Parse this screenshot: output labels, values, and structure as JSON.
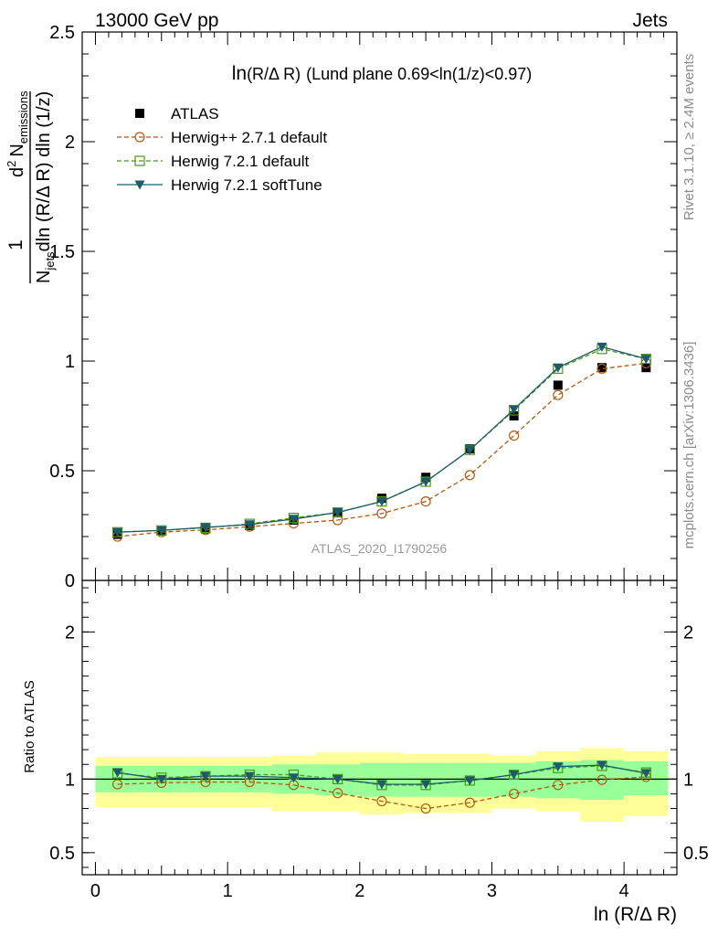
{
  "header": {
    "left": "13000 GeV pp",
    "right": "Jets"
  },
  "side_labels": {
    "rivet": "Rivet 3.1.10, ≥ 2.4M events",
    "mcplots": "mcplots.cern.ch [arXiv:1306.3436]"
  },
  "watermark": "ATLAS_2020_I1790256",
  "plot_title": {
    "main": "ln",
    "sub": "(R/Δ R)",
    "tail": "(Lund plane 0.69<ln(1/z)<0.97)"
  },
  "main_ylabel": {
    "one": "1",
    "d2": "d",
    "sup2": "2",
    "n": "N",
    "emissions": "emissions",
    "njets_n": "N",
    "jets": "jets",
    "den_tail": "dln (R/Δ R) dln (1/z)"
  },
  "ratio_ylabel": "Ratio to ATLAS",
  "xlabel": "ln (R/Δ R)",
  "legend": [
    {
      "key": "atlas",
      "label": "ATLAS",
      "color": "#000000",
      "marker": "filled-square"
    },
    {
      "key": "herwigpp",
      "label": "Herwig++ 2.7.1 default",
      "color": "#b05a10",
      "marker": "open-circle"
    },
    {
      "key": "h721",
      "label": "Herwig 7.2.1 default",
      "color": "#4b9a18",
      "marker": "open-square"
    },
    {
      "key": "soft",
      "label": "Herwig 7.2.1 softTune",
      "color": "#1f5a6b",
      "marker": "filled-triangle-down"
    }
  ],
  "chart_data": [
    {
      "type": "scatter",
      "panel": "main",
      "xlim": [
        -0.1,
        4.4
      ],
      "ylim": [
        0,
        2.5
      ],
      "yticks": [
        0,
        0.5,
        1,
        1.5,
        2,
        2.5
      ],
      "ytick_labels": [
        "0",
        "0.5",
        "1",
        "1.5",
        "2",
        "2.5"
      ],
      "x": [
        0.167,
        0.5,
        0.833,
        1.167,
        1.5,
        1.833,
        2.167,
        2.5,
        2.833,
        3.167,
        3.5,
        3.833,
        4.167
      ],
      "series": [
        {
          "name": "ATLAS",
          "values": [
            0.21,
            0.225,
            0.235,
            0.25,
            0.275,
            0.31,
            0.375,
            0.47,
            0.6,
            0.75,
            0.89,
            0.97,
            0.97
          ]
        },
        {
          "name": "Herwig++ 2.7.1 default",
          "values": [
            0.2,
            0.22,
            0.23,
            0.245,
            0.26,
            0.275,
            0.305,
            0.36,
            0.48,
            0.66,
            0.845,
            0.965,
            0.99
          ]
        },
        {
          "name": "Herwig 7.2.1 default",
          "values": [
            0.22,
            0.228,
            0.24,
            0.258,
            0.285,
            0.31,
            0.36,
            0.45,
            0.595,
            0.775,
            0.965,
            1.055,
            1.01
          ]
        },
        {
          "name": "Herwig 7.2.1 softTune",
          "values": [
            0.22,
            0.228,
            0.242,
            0.255,
            0.28,
            0.31,
            0.36,
            0.45,
            0.595,
            0.78,
            0.97,
            1.065,
            1.01
          ]
        }
      ]
    },
    {
      "type": "line",
      "panel": "ratio",
      "ylabel": "Ratio to ATLAS",
      "xlabel": "ln (R/Δ R)",
      "xlim": [
        -0.1,
        4.4
      ],
      "ylim": [
        0.35,
        2.35
      ],
      "yticks": [
        0.5,
        1,
        2
      ],
      "ytick_labels": [
        "0.5",
        "1",
        "2"
      ],
      "xticks": [
        0,
        1,
        2,
        3,
        4
      ],
      "xtick_labels": [
        "0",
        "1",
        "2",
        "3",
        "4"
      ],
      "bins": [
        [
          0,
          0.333
        ],
        [
          0.333,
          0.667
        ],
        [
          0.667,
          1.0
        ],
        [
          1.0,
          1.333
        ],
        [
          1.333,
          1.667
        ],
        [
          1.667,
          2.0
        ],
        [
          2.0,
          2.333
        ],
        [
          2.333,
          2.667
        ],
        [
          2.667,
          3.0
        ],
        [
          3.0,
          3.333
        ],
        [
          3.333,
          3.667
        ],
        [
          3.667,
          4.0
        ],
        [
          4.0,
          4.333
        ]
      ],
      "band_inner": [
        [
          0.91,
          1.09
        ],
        [
          0.91,
          1.09
        ],
        [
          0.91,
          1.09
        ],
        [
          0.91,
          1.09
        ],
        [
          0.9,
          1.1
        ],
        [
          0.89,
          1.1
        ],
        [
          0.88,
          1.11
        ],
        [
          0.88,
          1.11
        ],
        [
          0.88,
          1.11
        ],
        [
          0.88,
          1.11
        ],
        [
          0.87,
          1.12
        ],
        [
          0.86,
          1.13
        ],
        [
          0.89,
          1.12
        ]
      ],
      "band_outer": [
        [
          0.81,
          1.15
        ],
        [
          0.81,
          1.15
        ],
        [
          0.81,
          1.15
        ],
        [
          0.81,
          1.15
        ],
        [
          0.78,
          1.16
        ],
        [
          0.78,
          1.18
        ],
        [
          0.76,
          1.18
        ],
        [
          0.77,
          1.17
        ],
        [
          0.77,
          1.17
        ],
        [
          0.8,
          1.16
        ],
        [
          0.78,
          1.19
        ],
        [
          0.71,
          1.21
        ],
        [
          0.75,
          1.19
        ]
      ],
      "x": [
        0.167,
        0.5,
        0.833,
        1.167,
        1.5,
        1.833,
        2.167,
        2.5,
        2.833,
        3.167,
        3.5,
        3.833,
        4.167
      ],
      "series": [
        {
          "name": "Herwig++ 2.7.1 default",
          "values": [
            0.965,
            0.975,
            0.98,
            0.98,
            0.96,
            0.905,
            0.85,
            0.8,
            0.84,
            0.9,
            0.96,
            0.995,
            1.015
          ]
        },
        {
          "name": "Herwig 7.2.1 default",
          "values": [
            1.04,
            1.01,
            1.02,
            1.03,
            1.03,
            1.0,
            0.96,
            0.96,
            0.99,
            1.03,
            1.075,
            1.09,
            1.045
          ]
        },
        {
          "name": "Herwig 7.2.1 softTune",
          "values": [
            1.045,
            1.0,
            1.02,
            1.02,
            1.01,
            1.0,
            0.965,
            0.965,
            0.99,
            1.03,
            1.085,
            1.095,
            1.04
          ]
        }
      ]
    }
  ]
}
